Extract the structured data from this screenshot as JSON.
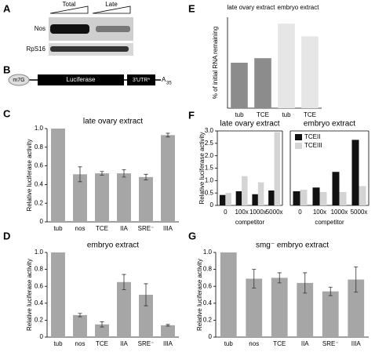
{
  "panel_labels": [
    "A",
    "B",
    "C",
    "D",
    "E",
    "F",
    "G"
  ],
  "blot": {
    "lanes": [
      "Total",
      "Late"
    ],
    "rows": [
      "Nos",
      "RpS16"
    ]
  },
  "construct": {
    "cap": "m7G",
    "orf": "Luciferase",
    "utr": "3'UTR*",
    "tail": "A",
    "tail_length": "35"
  },
  "chart_data": [
    {
      "type": "bar",
      "title": "late ovary extract",
      "ylabel": "Relative luciferase activity",
      "color": "#a6a6a6",
      "categories": [
        "tub",
        "nos",
        "TCE",
        "IIA",
        "SRE⁻",
        "IIIA"
      ],
      "values": [
        1.0,
        0.51,
        0.52,
        0.52,
        0.48,
        0.93
      ],
      "errors": [
        null,
        0.08,
        0.02,
        0.04,
        0.03,
        0.02
      ],
      "ylim": [
        0,
        1
      ],
      "yticks": [
        0,
        0.2,
        0.4,
        0.6,
        0.8,
        {
          "value": 1,
          "label": "1.0"
        }
      ]
    },
    {
      "type": "bar",
      "title": "embryo extract",
      "ylabel": "Relative luciferase activity",
      "color": "#a6a6a6",
      "categories": [
        "tub",
        "nos",
        "TCE",
        "IIA",
        "SRE⁻",
        "IIIA"
      ],
      "values": [
        1.0,
        0.26,
        0.15,
        0.65,
        0.5,
        0.14
      ],
      "errors": [
        null,
        0.02,
        0.03,
        0.09,
        0.13,
        0.01
      ],
      "ylim": [
        0,
        1
      ],
      "yticks": [
        0,
        0.2,
        0.4,
        0.6,
        0.8,
        {
          "value": 1,
          "label": "1.0"
        }
      ]
    },
    {
      "type": "bar",
      "ylabel": "% of initial RNA remaining",
      "groups": [
        "late ovary extract",
        "embryo extract"
      ],
      "categories": [
        "tub",
        "TCE",
        "tub",
        "TCE"
      ],
      "series": [
        {
          "name": null,
          "color": "#8c8c8c",
          "values": [
            50,
            55,
            null,
            null
          ]
        },
        {
          "name": null,
          "color": "#e6e6e6",
          "values": [
            null,
            null,
            93,
            79
          ]
        }
      ],
      "ylim": [
        0,
        100
      ]
    },
    {
      "type": "bar",
      "title": "late ovary extract",
      "ylabel": "Relative luciferase activity",
      "xlabel": "competitor",
      "categories": [
        "0",
        "100x",
        "1000x",
        "5000x"
      ],
      "series": [
        {
          "name": "TCEII",
          "color": "#111111",
          "values": [
            0.42,
            0.57,
            0.45,
            0.6
          ]
        },
        {
          "name": "TCEIII",
          "color": "#d4d4d4",
          "values": [
            0.5,
            1.18,
            0.93,
            2.95
          ]
        }
      ],
      "ylim": [
        0,
        3
      ],
      "yticks": [
        0,
        0.5,
        {
          "value": 1,
          "label": "1.0"
        },
        1.5,
        {
          "value": 2,
          "label": "2.0"
        },
        2.5,
        {
          "value": 3,
          "label": "3.0"
        }
      ]
    },
    {
      "type": "bar",
      "title": "embryo extract",
      "xlabel": "competitor",
      "legend": "upper left",
      "categories": [
        "0",
        "100x",
        "1000x",
        "5000x"
      ],
      "series": [
        {
          "name": "TCEII",
          "color": "#111111",
          "values": [
            0.19,
            0.24,
            0.45,
            0.88
          ]
        },
        {
          "name": "TCEIII",
          "color": "#d4d4d4",
          "values": [
            0.21,
            0.18,
            0.18,
            0.26
          ]
        }
      ],
      "ylim": [
        0,
        1
      ]
    },
    {
      "type": "bar",
      "title": "smg⁻ embryo extract",
      "ylabel": "Relative luciferase activity",
      "color": "#a6a6a6",
      "categories": [
        "tub",
        "nos",
        "TCE",
        "IIA",
        "SRE⁻",
        "IIIA"
      ],
      "values": [
        1.0,
        0.69,
        0.7,
        0.64,
        0.54,
        0.68
      ],
      "errors": [
        null,
        0.11,
        0.06,
        0.12,
        0.05,
        0.15
      ],
      "ylim": [
        0,
        1
      ],
      "yticks": [
        0,
        0.2,
        0.4,
        0.6,
        0.8,
        {
          "value": 1,
          "label": "1.0"
        }
      ]
    }
  ]
}
